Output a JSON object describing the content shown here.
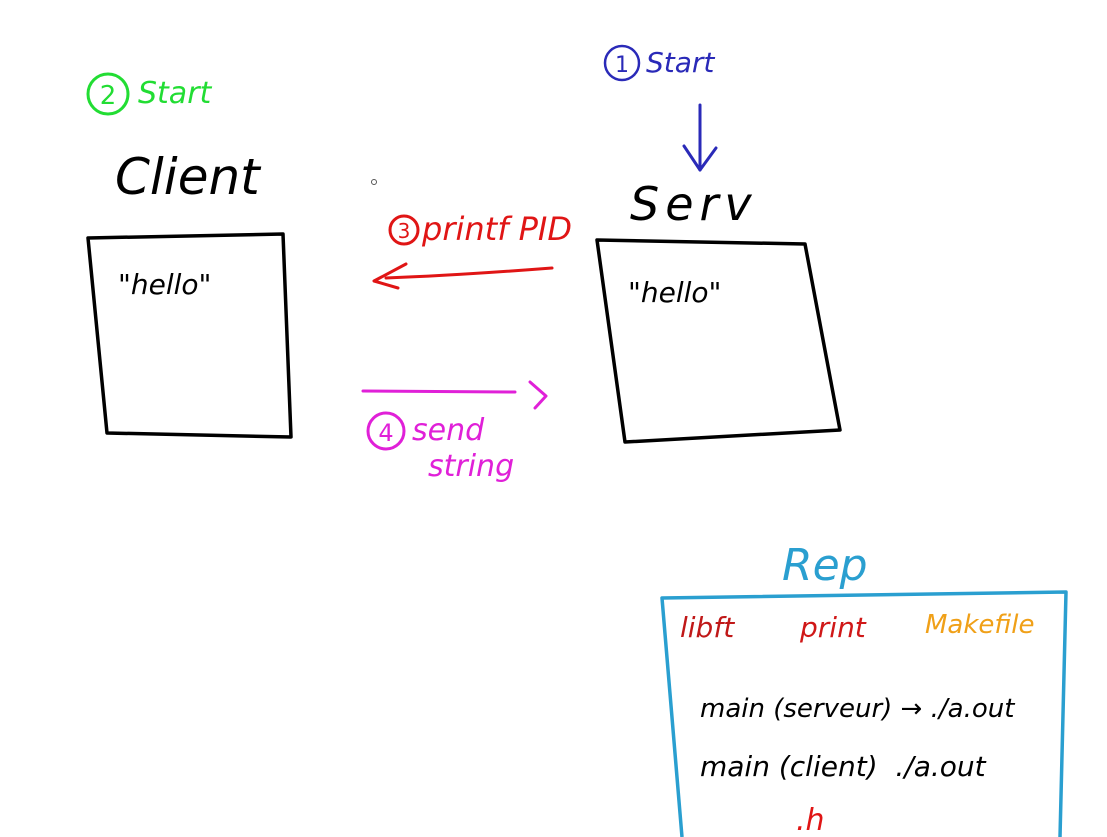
{
  "colors": {
    "client_step": "#22dd33",
    "server_step": "#2a2ab8",
    "printf_step": "#e01515",
    "send_step": "#e020d8",
    "repo": "#2a9fd0",
    "repo_libft": "#c01818",
    "repo_print": "#d01818",
    "repo_makefile": "#f0a018",
    "repo_h": "#e01515",
    "ink": "#000000"
  },
  "client": {
    "step_number": "2",
    "step_label": "Start",
    "title": "Client",
    "box_text": "\"hello\""
  },
  "server": {
    "step_number": "1",
    "step_label": "Start",
    "title": "Serv",
    "box_text": "\"hello\""
  },
  "printf_arrow": {
    "step_number": "3",
    "label": "printf PID"
  },
  "send_arrow": {
    "step_number": "4",
    "label_line1": "send",
    "label_line2": "string"
  },
  "repo": {
    "title": "Rep",
    "libft": "libft",
    "print": "print",
    "makefile": "Makefile",
    "main_server": "main (serveur) → ./a.out",
    "main_client": "main (client)  ./a.out",
    "header_ext": ".h"
  }
}
